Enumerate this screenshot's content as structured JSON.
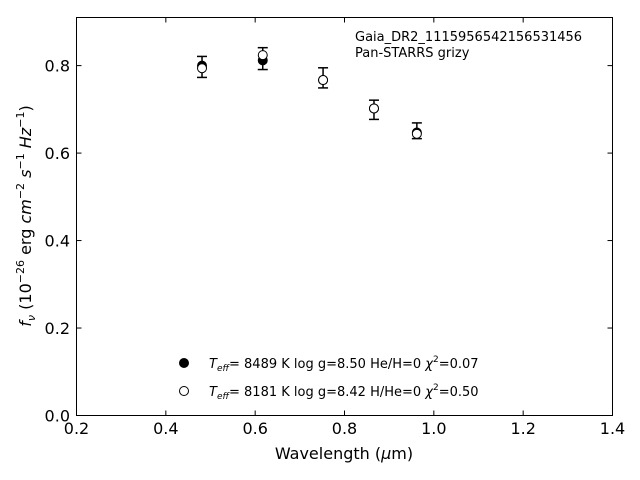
{
  "chart_data": {
    "type": "scatter",
    "title": "",
    "annotation_lines": [
      "Gaia_DR2_1115956542156531456",
      "Pan-STARRS grizy"
    ],
    "xlabel": {
      "main": "Wavelength (",
      "mu": "μ",
      "tail": "m)"
    },
    "ylabel": {
      "f": "f",
      "nu": "ν",
      "pre": " (10",
      "e1": "−26",
      "mid1": " erg ",
      "cm": "cm",
      "e2": "−2",
      "s": "s",
      "e3": "−1",
      "hz": "Hz",
      "e4": "−1",
      "close": ")"
    },
    "xlim": [
      0.2,
      1.4
    ],
    "ylim": [
      0.0,
      0.91
    ],
    "xticks": [
      "0.2",
      "0.4",
      "0.6",
      "0.8",
      "1.0",
      "1.2",
      "1.4"
    ],
    "yticks": [
      "0.0",
      "0.2",
      "0.4",
      "0.6",
      "0.8"
    ],
    "grid": false,
    "legend_position": "lower-center",
    "observed": {
      "x": [
        0.481,
        0.617,
        0.752,
        0.866,
        0.962
      ],
      "y": [
        0.797,
        0.816,
        0.772,
        0.699,
        0.651
      ],
      "yerr": [
        0.024,
        0.025,
        0.023,
        0.022,
        0.018
      ]
    },
    "series": [
      {
        "marker": "filled",
        "legend": {
          "teff": "T",
          "eff": "eff",
          "rest": "=  8489 K  log g=8.50  He/H=0  ",
          "chi": "χ",
          "two": "2",
          "val": "=0.07"
        },
        "x": [
          0.481,
          0.617,
          0.752,
          0.866,
          0.962
        ],
        "y": [
          0.8,
          0.812,
          0.767,
          0.702,
          0.647
        ]
      },
      {
        "marker": "open",
        "legend": {
          "teff": "T",
          "eff": "eff",
          "rest": "=  8181 K  log g=8.42  H/He=0  ",
          "chi": "χ",
          "two": "2",
          "val": "=0.50"
        },
        "x": [
          0.481,
          0.617,
          0.752,
          0.866,
          0.962
        ],
        "y": [
          0.794,
          0.824,
          0.767,
          0.702,
          0.644
        ]
      }
    ]
  }
}
